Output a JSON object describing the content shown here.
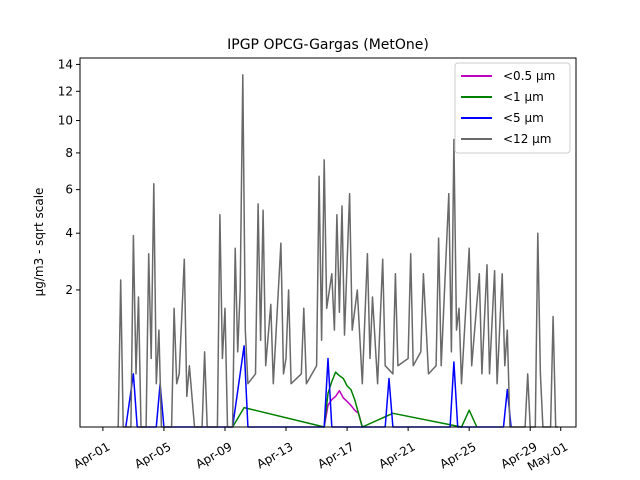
{
  "chart_data": {
    "type": "line",
    "title": "IPGP OPCG-Gargas (MetOne)",
    "xlabel": "",
    "ylabel": "µg/m3 - sqrt scale",
    "yscale": "sqrt",
    "xlim": [
      "2023-03-30T12:00",
      "2023-05-02T00:00"
    ],
    "ylim": [
      0,
      14.5
    ],
    "yticks": [
      2,
      4,
      6,
      8,
      10,
      12,
      14
    ],
    "ytick_labels": [
      "2",
      "4",
      "6",
      "8",
      "10",
      "12",
      "14"
    ],
    "xticks": [
      "2023-04-01",
      "2023-04-05",
      "2023-04-09",
      "2023-04-13",
      "2023-04-17",
      "2023-04-21",
      "2023-04-25",
      "2023-04-29",
      "2023-05-01"
    ],
    "xtick_labels": [
      "Apr-01",
      "Apr-05",
      "Apr-09",
      "Apr-13",
      "Apr-17",
      "Apr-21",
      "Apr-25",
      "Apr-29",
      "May-01"
    ],
    "grid": false,
    "legend_position": "top-right",
    "series": [
      {
        "name": "<0.5 µm",
        "color": "#bf00bf",
        "points": [
          [
            "2023-04-15T12:00",
            0
          ],
          [
            "2023-04-15T18:00",
            0.05
          ],
          [
            "2023-04-16T00:00",
            0.08
          ],
          [
            "2023-04-16T06:00",
            0.1
          ],
          [
            "2023-04-16T12:00",
            0.14
          ],
          [
            "2023-04-16T18:00",
            0.09
          ],
          [
            "2023-04-17T00:00",
            0.07
          ],
          [
            "2023-04-17T06:00",
            0.05
          ],
          [
            "2023-04-17T12:00",
            0.03
          ],
          [
            "2023-04-17T18:00",
            0.02
          ],
          [
            "2023-04-18T00:00",
            0
          ]
        ]
      },
      {
        "name": "<1 µm",
        "color": "#008000",
        "points": [
          [
            "2023-04-09T12:00",
            0
          ],
          [
            "2023-04-10T06:00",
            0.04
          ],
          [
            "2023-04-15T12:00",
            0
          ],
          [
            "2023-04-15T18:00",
            0.12
          ],
          [
            "2023-04-16T00:00",
            0.22
          ],
          [
            "2023-04-16T06:00",
            0.32
          ],
          [
            "2023-04-16T12:00",
            0.28
          ],
          [
            "2023-04-16T18:00",
            0.25
          ],
          [
            "2023-04-17T00:00",
            0.18
          ],
          [
            "2023-04-17T06:00",
            0.15
          ],
          [
            "2023-04-17T12:00",
            0.08
          ],
          [
            "2023-04-18T00:00",
            0
          ],
          [
            "2023-04-20T00:00",
            0.02
          ],
          [
            "2023-04-24T12:00",
            0
          ],
          [
            "2023-04-25T00:00",
            0.03
          ],
          [
            "2023-04-25T12:00",
            0
          ]
        ]
      },
      {
        "name": "<5 µm",
        "color": "#0000ff",
        "points": [
          [
            "2023-04-02T12:00",
            0
          ],
          [
            "2023-04-03T00:00",
            0.3
          ],
          [
            "2023-04-03T06:00",
            0
          ],
          [
            "2023-04-04T12:00",
            0
          ],
          [
            "2023-04-04T18:00",
            0.2
          ],
          [
            "2023-04-05T00:00",
            0
          ],
          [
            "2023-04-09T12:00",
            0
          ],
          [
            "2023-04-10T06:00",
            0.7
          ],
          [
            "2023-04-10T12:00",
            0
          ],
          [
            "2023-04-15T12:00",
            0
          ],
          [
            "2023-04-15T18:00",
            0.5
          ],
          [
            "2023-04-16T00:00",
            0
          ],
          [
            "2023-04-19T12:00",
            0
          ],
          [
            "2023-04-19T18:00",
            0.25
          ],
          [
            "2023-04-20T00:00",
            0
          ],
          [
            "2023-04-23T18:00",
            0
          ],
          [
            "2023-04-24T00:00",
            0.45
          ],
          [
            "2023-04-24T06:00",
            0
          ],
          [
            "2023-04-27T06:00",
            0
          ],
          [
            "2023-04-27T12:00",
            0.15
          ],
          [
            "2023-04-27T18:00",
            0
          ]
        ]
      },
      {
        "name": "<12 µm",
        "color": "#696969",
        "points": [
          [
            "2023-04-02T00:00",
            0
          ],
          [
            "2023-04-02T04:00",
            2.3
          ],
          [
            "2023-04-02T08:00",
            0
          ],
          [
            "2023-04-02T20:00",
            0
          ],
          [
            "2023-04-03T00:00",
            3.9
          ],
          [
            "2023-04-03T04:00",
            0.3
          ],
          [
            "2023-04-03T08:00",
            1.8
          ],
          [
            "2023-04-03T12:00",
            0
          ],
          [
            "2023-04-03T20:00",
            0
          ],
          [
            "2023-04-04T00:00",
            3.2
          ],
          [
            "2023-04-04T04:00",
            0.5
          ],
          [
            "2023-04-04T08:00",
            6.3
          ],
          [
            "2023-04-04T12:00",
            0.2
          ],
          [
            "2023-04-04T16:00",
            1.0
          ],
          [
            "2023-04-04T20:00",
            0
          ],
          [
            "2023-04-05T12:00",
            0
          ],
          [
            "2023-04-05T16:00",
            1.5
          ],
          [
            "2023-04-05T20:00",
            0.2
          ],
          [
            "2023-04-06T00:00",
            0.3
          ],
          [
            "2023-04-06T08:00",
            3.0
          ],
          [
            "2023-04-06T12:00",
            0.1
          ],
          [
            "2023-04-06T16:00",
            0.4
          ],
          [
            "2023-04-07T00:00",
            0
          ],
          [
            "2023-04-07T12:00",
            0
          ],
          [
            "2023-04-07T16:00",
            0.6
          ],
          [
            "2023-04-07T20:00",
            0
          ],
          [
            "2023-04-08T12:00",
            0
          ],
          [
            "2023-04-08T16:00",
            4.8
          ],
          [
            "2023-04-08T20:00",
            0.5
          ],
          [
            "2023-04-09T00:00",
            1.5
          ],
          [
            "2023-04-09T04:00",
            0
          ],
          [
            "2023-04-09T12:00",
            0
          ],
          [
            "2023-04-09T16:00",
            3.4
          ],
          [
            "2023-04-09T20:00",
            0.6
          ],
          [
            "2023-04-10T00:00",
            2.0
          ],
          [
            "2023-04-10T04:00",
            13.2
          ],
          [
            "2023-04-10T08:00",
            1.0
          ],
          [
            "2023-04-10T12:00",
            0.2
          ],
          [
            "2023-04-11T00:00",
            0.3
          ],
          [
            "2023-04-11T04:00",
            5.3
          ],
          [
            "2023-04-11T08:00",
            0.8
          ],
          [
            "2023-04-11T12:00",
            5.0
          ],
          [
            "2023-04-11T16:00",
            0.4
          ],
          [
            "2023-04-12T00:00",
            1.6
          ],
          [
            "2023-04-12T04:00",
            0.2
          ],
          [
            "2023-04-12T16:00",
            3.6
          ],
          [
            "2023-04-12T20:00",
            0.3
          ],
          [
            "2023-04-13T00:00",
            0.5
          ],
          [
            "2023-04-13T04:00",
            2.0
          ],
          [
            "2023-04-13T08:00",
            0.2
          ],
          [
            "2023-04-14T00:00",
            0.3
          ],
          [
            "2023-04-14T04:00",
            1.5
          ],
          [
            "2023-04-14T08:00",
            0.2
          ],
          [
            "2023-04-15T00:00",
            0.4
          ],
          [
            "2023-04-15T04:00",
            6.7
          ],
          [
            "2023-04-15T08:00",
            0.8
          ],
          [
            "2023-04-15T12:00",
            7.6
          ],
          [
            "2023-04-15T16:00",
            1.5
          ],
          [
            "2023-04-16T00:00",
            2.5
          ],
          [
            "2023-04-16T04:00",
            1.0
          ],
          [
            "2023-04-16T08:00",
            4.8
          ],
          [
            "2023-04-16T12:00",
            1.4
          ],
          [
            "2023-04-16T16:00",
            5.2
          ],
          [
            "2023-04-16T20:00",
            0.9
          ],
          [
            "2023-04-17T04:00",
            5.8
          ],
          [
            "2023-04-17T08:00",
            1.0
          ],
          [
            "2023-04-17T16:00",
            2.0
          ],
          [
            "2023-04-18T00:00",
            0.2
          ],
          [
            "2023-04-18T08:00",
            3.2
          ],
          [
            "2023-04-18T12:00",
            0.5
          ],
          [
            "2023-04-18T16:00",
            1.8
          ],
          [
            "2023-04-19T00:00",
            0.2
          ],
          [
            "2023-04-19T08:00",
            3.0
          ],
          [
            "2023-04-19T12:00",
            0.4
          ],
          [
            "2023-04-20T00:00",
            0.3
          ],
          [
            "2023-04-20T04:00",
            2.5
          ],
          [
            "2023-04-20T08:00",
            0.4
          ],
          [
            "2023-04-21T00:00",
            0.5
          ],
          [
            "2023-04-21T04:00",
            3.2
          ],
          [
            "2023-04-21T08:00",
            0.4
          ],
          [
            "2023-04-21T20:00",
            0.6
          ],
          [
            "2023-04-22T00:00",
            2.5
          ],
          [
            "2023-04-22T08:00",
            0.3
          ],
          [
            "2023-04-22T20:00",
            0.4
          ],
          [
            "2023-04-23T00:00",
            3.8
          ],
          [
            "2023-04-23T04:00",
            0.4
          ],
          [
            "2023-04-23T16:00",
            5.8
          ],
          [
            "2023-04-23T20:00",
            0.6
          ],
          [
            "2023-04-24T00:00",
            8.8
          ],
          [
            "2023-04-24T04:00",
            1.0
          ],
          [
            "2023-04-24T08:00",
            1.5
          ],
          [
            "2023-04-24T12:00",
            0.2
          ],
          [
            "2023-04-25T00:00",
            3.4
          ],
          [
            "2023-04-25T04:00",
            0.4
          ],
          [
            "2023-04-25T16:00",
            2.5
          ],
          [
            "2023-04-25T20:00",
            0.3
          ],
          [
            "2023-04-26T04:00",
            2.8
          ],
          [
            "2023-04-26T08:00",
            0.3
          ],
          [
            "2023-04-26T16:00",
            2.6
          ],
          [
            "2023-04-26T20:00",
            0.2
          ],
          [
            "2023-04-27T04:00",
            2.5
          ],
          [
            "2023-04-27T08:00",
            0.4
          ],
          [
            "2023-04-27T12:00",
            1.0
          ],
          [
            "2023-04-27T16:00",
            0
          ],
          [
            "2023-04-28T16:00",
            0
          ],
          [
            "2023-04-28T20:00",
            0.3
          ],
          [
            "2023-04-29T00:00",
            0
          ],
          [
            "2023-04-29T08:00",
            0
          ],
          [
            "2023-04-29T12:00",
            4.0
          ],
          [
            "2023-04-29T16:00",
            0.3
          ],
          [
            "2023-04-29T20:00",
            0
          ],
          [
            "2023-04-30T08:00",
            0
          ],
          [
            "2023-04-30T12:00",
            1.3
          ],
          [
            "2023-04-30T16:00",
            0
          ],
          [
            "2023-04-30T20:00",
            0
          ]
        ]
      }
    ]
  }
}
